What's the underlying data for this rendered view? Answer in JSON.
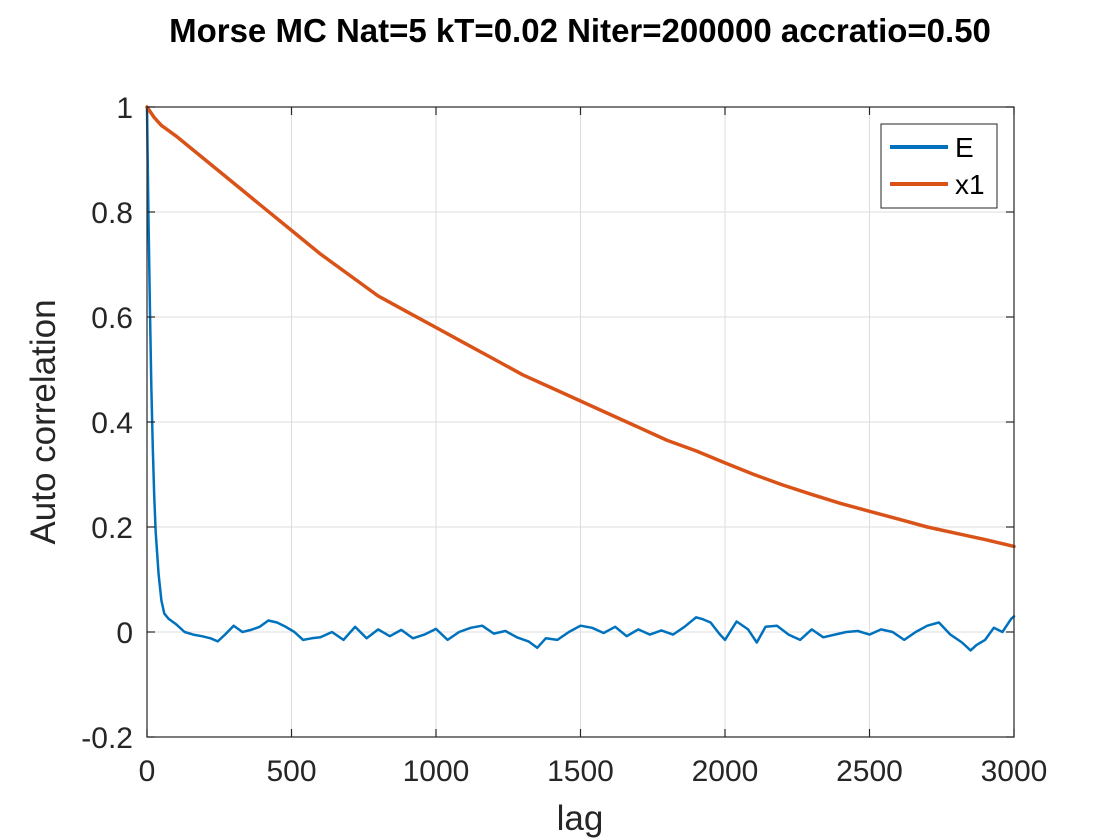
{
  "chart_data": {
    "type": "line",
    "title": "Morse MC Nat=5 kT=0.02 Niter=200000 accratio=0.50",
    "xlabel": "lag",
    "ylabel": "Auto correlation",
    "xlim": [
      0,
      3000
    ],
    "ylim": [
      -0.2,
      1
    ],
    "xticks": [
      0,
      500,
      1000,
      1500,
      2000,
      2500,
      3000
    ],
    "yticks": [
      -0.2,
      0,
      0.2,
      0.4,
      0.6,
      0.8,
      1
    ],
    "xtick_labels": [
      "0",
      "500",
      "1000",
      "1500",
      "2000",
      "2500",
      "3000"
    ],
    "ytick_labels": [
      "-0.2",
      "0",
      "0.2",
      "0.4",
      "0.6",
      "0.8",
      "1"
    ],
    "grid": true,
    "legend_position": "top-right",
    "series": [
      {
        "name": "E",
        "color": "#0072BD",
        "x": [
          0,
          5,
          10,
          15,
          20,
          25,
          30,
          40,
          50,
          60,
          75,
          100,
          130,
          160,
          190,
          220,
          245,
          270,
          300,
          330,
          360,
          390,
          420,
          450,
          480,
          510,
          540,
          570,
          600,
          640,
          680,
          720,
          760,
          800,
          840,
          880,
          920,
          960,
          1000,
          1040,
          1080,
          1120,
          1160,
          1200,
          1240,
          1280,
          1320,
          1350,
          1380,
          1420,
          1460,
          1500,
          1540,
          1580,
          1620,
          1660,
          1700,
          1740,
          1780,
          1820,
          1860,
          1900,
          1920,
          1950,
          1980,
          2000,
          2040,
          2080,
          2110,
          2140,
          2180,
          2220,
          2260,
          2300,
          2340,
          2380,
          2420,
          2460,
          2500,
          2540,
          2580,
          2620,
          2660,
          2700,
          2740,
          2780,
          2820,
          2850,
          2870,
          2900,
          2930,
          2960,
          2990,
          3000
        ],
        "values": [
          1.0,
          0.8,
          0.62,
          0.47,
          0.35,
          0.26,
          0.19,
          0.11,
          0.06,
          0.035,
          0.025,
          0.015,
          0.0,
          -0.005,
          -0.008,
          -0.012,
          -0.018,
          -0.005,
          0.012,
          0.0,
          0.004,
          0.01,
          0.022,
          0.018,
          0.01,
          0.0,
          -0.015,
          -0.012,
          -0.01,
          0.0,
          -0.015,
          0.01,
          -0.012,
          0.005,
          -0.008,
          0.004,
          -0.012,
          -0.005,
          0.006,
          -0.015,
          0.0,
          0.008,
          0.012,
          -0.003,
          0.002,
          -0.01,
          -0.018,
          -0.03,
          -0.012,
          -0.015,
          0.0,
          0.012,
          0.008,
          -0.002,
          0.01,
          -0.008,
          0.005,
          -0.005,
          0.003,
          -0.005,
          0.01,
          0.028,
          0.025,
          0.018,
          -0.003,
          -0.015,
          0.02,
          0.005,
          -0.02,
          0.01,
          0.012,
          -0.005,
          -0.015,
          0.005,
          -0.01,
          -0.005,
          0.0,
          0.002,
          -0.005,
          0.005,
          0.0,
          -0.015,
          0.0,
          0.012,
          0.018,
          -0.005,
          -0.02,
          -0.035,
          -0.025,
          -0.015,
          0.008,
          0.0,
          0.025,
          0.03
        ]
      },
      {
        "name": "x1",
        "color": "#D95319",
        "x": [
          0,
          25,
          50,
          100,
          200,
          300,
          400,
          500,
          600,
          700,
          800,
          900,
          1000,
          1100,
          1200,
          1300,
          1400,
          1500,
          1600,
          1700,
          1800,
          1900,
          2000,
          2100,
          2200,
          2300,
          2400,
          2500,
          2600,
          2700,
          2800,
          2900,
          3000
        ],
        "values": [
          1.0,
          0.98,
          0.965,
          0.945,
          0.9,
          0.855,
          0.81,
          0.765,
          0.72,
          0.68,
          0.64,
          0.61,
          0.58,
          0.55,
          0.52,
          0.49,
          0.465,
          0.44,
          0.415,
          0.39,
          0.365,
          0.345,
          0.322,
          0.3,
          0.28,
          0.262,
          0.245,
          0.23,
          0.215,
          0.2,
          0.188,
          0.176,
          0.163
        ]
      }
    ]
  }
}
